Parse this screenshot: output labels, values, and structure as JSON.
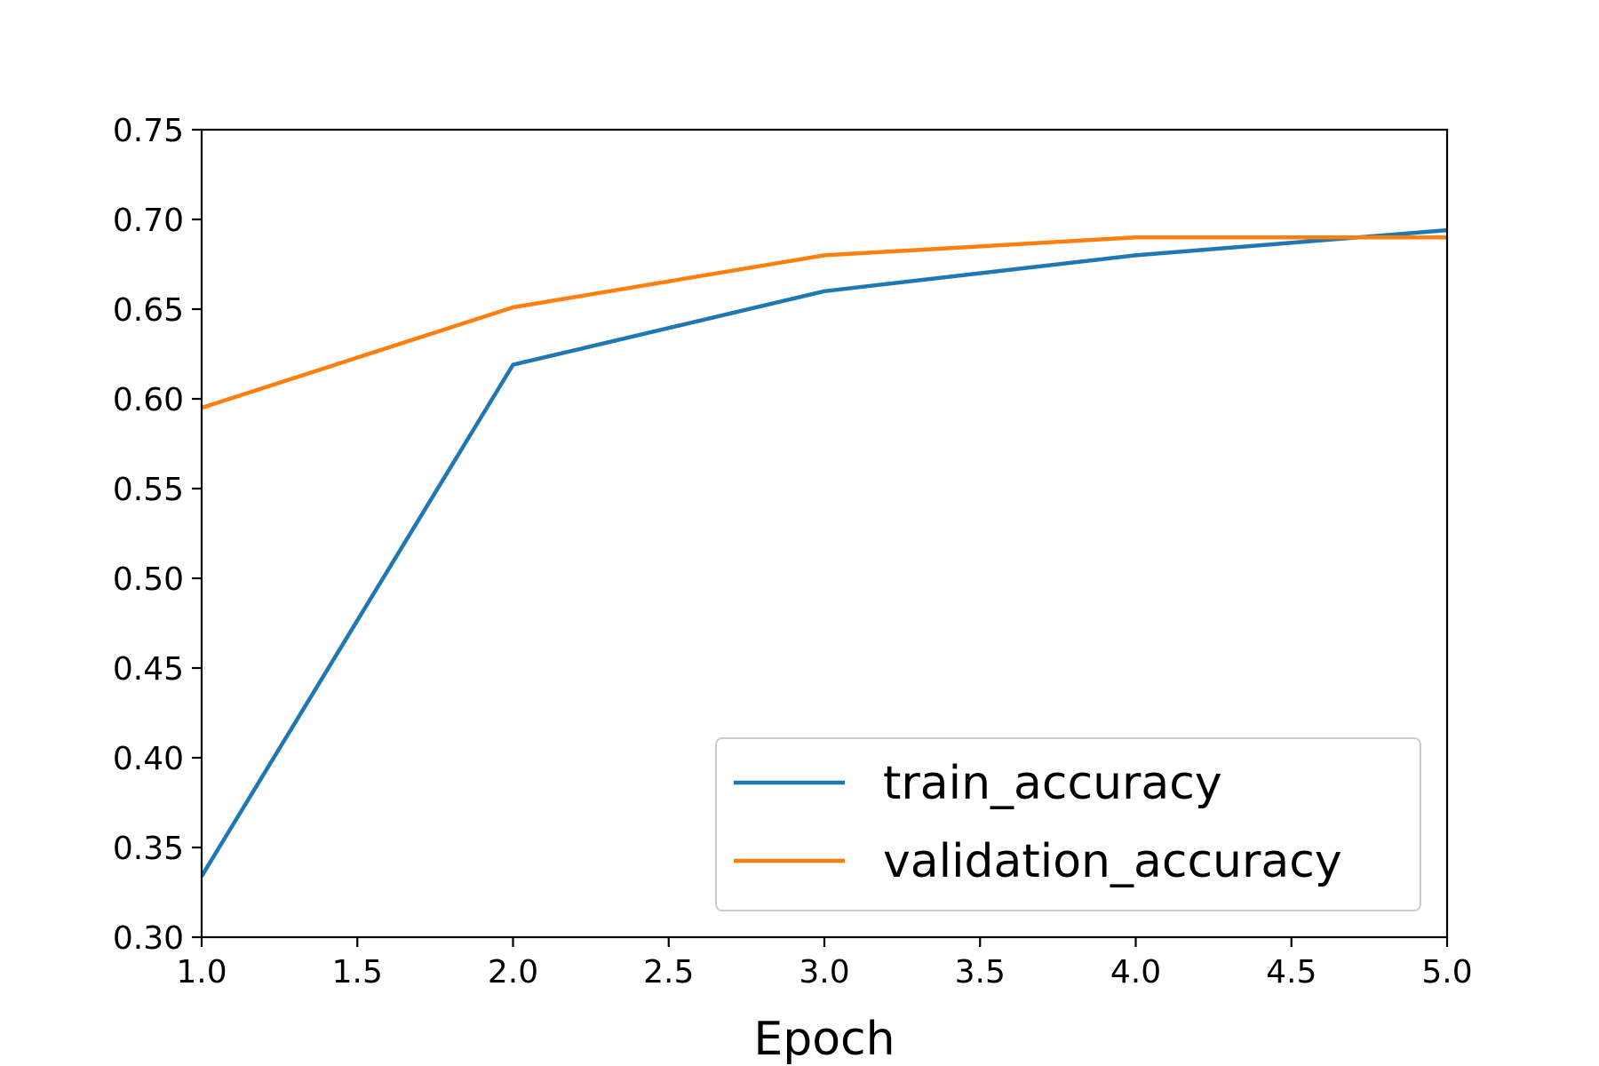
{
  "chart_data": {
    "type": "line",
    "title": "",
    "xlabel": "Epoch",
    "ylabel": "",
    "x": [
      1,
      2,
      3,
      4,
      5
    ],
    "xlim": [
      1.0,
      5.0
    ],
    "ylim": [
      0.3,
      0.75
    ],
    "xticks": [
      "1.0",
      "1.5",
      "2.0",
      "2.5",
      "3.0",
      "3.5",
      "4.0",
      "4.5",
      "5.0"
    ],
    "yticks": [
      "0.30",
      "0.35",
      "0.40",
      "0.45",
      "0.50",
      "0.55",
      "0.60",
      "0.65",
      "0.70",
      "0.75"
    ],
    "grid": false,
    "legend_position": "lower-right",
    "series": [
      {
        "name": "train_accuracy",
        "color": "#1f77b4",
        "values": [
          0.334,
          0.619,
          0.66,
          0.68,
          0.694
        ]
      },
      {
        "name": "validation_accuracy",
        "color": "#ff7f0e",
        "values": [
          0.595,
          0.651,
          0.68,
          0.69,
          0.69
        ]
      }
    ]
  }
}
